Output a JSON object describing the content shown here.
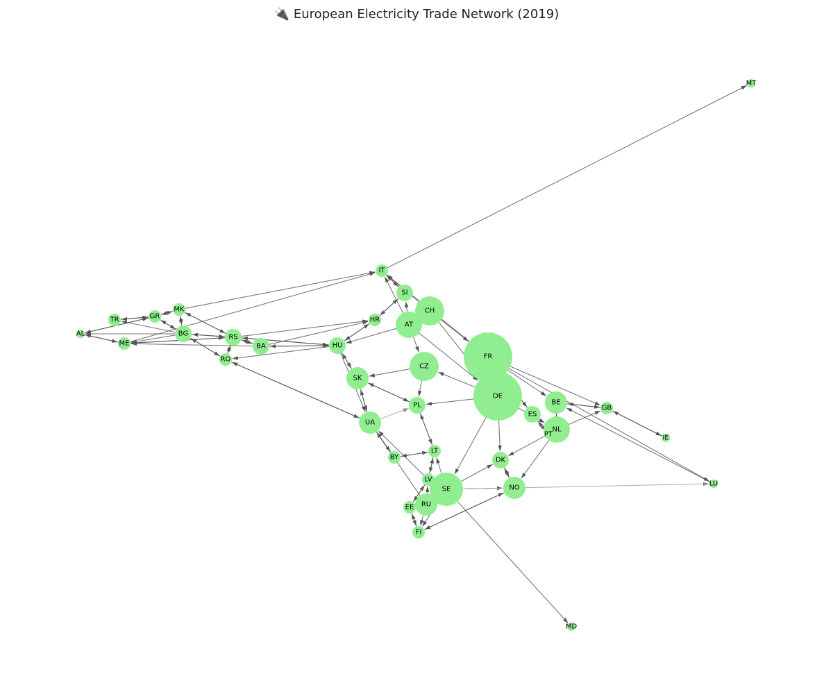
{
  "title": "🔌 European Electricity Trade Network (2019)",
  "colors": {
    "node": "#90ee90",
    "edge": "#555555",
    "edge_light": "#aaaaaa"
  },
  "nodes": [
    {
      "id": "MT",
      "label": "MT",
      "size": 0
    },
    {
      "id": "IT",
      "label": "IT",
      "size": 1
    },
    {
      "id": "SI",
      "label": "SI",
      "size": 2
    },
    {
      "id": "CH",
      "label": "CH",
      "size": 5
    },
    {
      "id": "AT",
      "label": "AT",
      "size": 4
    },
    {
      "id": "HR",
      "label": "HR",
      "size": 1
    },
    {
      "id": "FR",
      "label": "FR",
      "size": 10
    },
    {
      "id": "DE",
      "label": "DE",
      "size": 10
    },
    {
      "id": "CZ",
      "label": "CZ",
      "size": 5
    },
    {
      "id": "HU",
      "label": "HU",
      "size": 2
    },
    {
      "id": "SK",
      "label": "SK",
      "size": 3
    },
    {
      "id": "PL",
      "label": "PL",
      "size": 2
    },
    {
      "id": "UA",
      "label": "UA",
      "size": 3
    },
    {
      "id": "BE",
      "label": "BE",
      "size": 3
    },
    {
      "id": "GB",
      "label": "GB",
      "size": 1
    },
    {
      "id": "ES",
      "label": "ES",
      "size": 2
    },
    {
      "id": "NL",
      "label": "NL",
      "size": 4
    },
    {
      "id": "PT",
      "label": "PT",
      "size": 0
    },
    {
      "id": "IE",
      "label": "IE",
      "size": 0
    },
    {
      "id": "LU",
      "label": "LU",
      "size": 0
    },
    {
      "id": "DK",
      "label": "DK",
      "size": 2
    },
    {
      "id": "NO",
      "label": "NO",
      "size": 3
    },
    {
      "id": "SE",
      "label": "SE",
      "size": 6
    },
    {
      "id": "LT",
      "label": "LT",
      "size": 1
    },
    {
      "id": "LV",
      "label": "LV",
      "size": 1
    },
    {
      "id": "BY",
      "label": "BY",
      "size": 1
    },
    {
      "id": "EE",
      "label": "EE",
      "size": 1
    },
    {
      "id": "RU",
      "label": "RU",
      "size": 3
    },
    {
      "id": "FI",
      "label": "FI",
      "size": 1
    },
    {
      "id": "MD",
      "label": "MD",
      "size": 0
    },
    {
      "id": "MK",
      "label": "MK",
      "size": 1
    },
    {
      "id": "GR",
      "label": "GR",
      "size": 1
    },
    {
      "id": "TR",
      "label": "TR",
      "size": 1
    },
    {
      "id": "AL",
      "label": "AL",
      "size": 0
    },
    {
      "id": "BG",
      "label": "BG",
      "size": 2
    },
    {
      "id": "ME",
      "label": "ME",
      "size": 1
    },
    {
      "id": "RS",
      "label": "RS",
      "size": 2
    },
    {
      "id": "BA",
      "label": "BA",
      "size": 2
    },
    {
      "id": "RO",
      "label": "RO",
      "size": 1
    }
  ],
  "edges": [
    {
      "from": "IT",
      "to": "MT"
    },
    {
      "from": "MK",
      "to": "IT"
    },
    {
      "from": "ME",
      "to": "IT"
    },
    {
      "from": "IT",
      "to": "SI"
    },
    {
      "from": "SI",
      "to": "IT"
    },
    {
      "from": "AT",
      "to": "IT"
    },
    {
      "from": "CH",
      "to": "IT"
    },
    {
      "from": "FR",
      "to": "IT"
    },
    {
      "from": "AT",
      "to": "SI"
    },
    {
      "from": "SI",
      "to": "HR"
    },
    {
      "from": "HR",
      "to": "SI"
    },
    {
      "from": "AT",
      "to": "HU"
    },
    {
      "from": "HU",
      "to": "HR"
    },
    {
      "from": "HR",
      "to": "HU"
    },
    {
      "from": "RS",
      "to": "HR"
    },
    {
      "from": "BA",
      "to": "HR"
    },
    {
      "from": "CH",
      "to": "AT"
    },
    {
      "from": "CH",
      "to": "DE"
    },
    {
      "from": "CH",
      "to": "FR"
    },
    {
      "from": "AT",
      "to": "CZ"
    },
    {
      "from": "AT",
      "to": "DE"
    },
    {
      "from": "FR",
      "to": "BE"
    },
    {
      "from": "FR",
      "to": "GB"
    },
    {
      "from": "FR",
      "to": "ES"
    },
    {
      "from": "ES",
      "to": "FR"
    },
    {
      "from": "ES",
      "to": "PT"
    },
    {
      "from": "PT",
      "to": "ES"
    },
    {
      "from": "FR",
      "to": "LU"
    },
    {
      "from": "LU",
      "to": "BE"
    },
    {
      "from": "BE",
      "to": "GB"
    },
    {
      "from": "GB",
      "to": "BE"
    },
    {
      "from": "NL",
      "to": "GB"
    },
    {
      "from": "NL",
      "to": "BE"
    },
    {
      "from": "BE",
      "to": "NL"
    },
    {
      "from": "GB",
      "to": "IE"
    },
    {
      "from": "IE",
      "to": "GB"
    },
    {
      "from": "DE",
      "to": "NL"
    },
    {
      "from": "NL",
      "to": "DK"
    },
    {
      "from": "NL",
      "to": "NO"
    },
    {
      "from": "DE",
      "to": "DK"
    },
    {
      "from": "DE",
      "to": "PL"
    },
    {
      "from": "DE",
      "to": "CZ"
    },
    {
      "from": "DE",
      "to": "SE"
    },
    {
      "from": "CZ",
      "to": "SK"
    },
    {
      "from": "CZ",
      "to": "PL"
    },
    {
      "from": "HU",
      "to": "SK"
    },
    {
      "from": "SK",
      "to": "HU"
    },
    {
      "from": "HU",
      "to": "RO"
    },
    {
      "from": "HU",
      "to": "RS"
    },
    {
      "from": "RS",
      "to": "HU"
    },
    {
      "from": "HU",
      "to": "UA"
    },
    {
      "from": "SK",
      "to": "UA"
    },
    {
      "from": "UA",
      "to": "SK"
    },
    {
      "from": "SK",
      "to": "PL"
    },
    {
      "from": "PL",
      "to": "SK"
    },
    {
      "from": "UA",
      "to": "PL",
      "light": true
    },
    {
      "from": "UA",
      "to": "RO"
    },
    {
      "from": "RO",
      "to": "UA"
    },
    {
      "from": "UA",
      "to": "BY"
    },
    {
      "from": "BY",
      "to": "UA"
    },
    {
      "from": "RU",
      "to": "UA"
    },
    {
      "from": "LV",
      "to": "UA"
    },
    {
      "from": "PL",
      "to": "LT"
    },
    {
      "from": "LT",
      "to": "PL"
    },
    {
      "from": "BY",
      "to": "LT"
    },
    {
      "from": "LT",
      "to": "BY"
    },
    {
      "from": "LV",
      "to": "LT"
    },
    {
      "from": "LT",
      "to": "LV"
    },
    {
      "from": "SE",
      "to": "LT"
    },
    {
      "from": "SE",
      "to": "DK"
    },
    {
      "from": "DK",
      "to": "NO"
    },
    {
      "from": "NO",
      "to": "DK"
    },
    {
      "from": "SE",
      "to": "NO"
    },
    {
      "from": "FI",
      "to": "NO"
    },
    {
      "from": "NO",
      "to": "FI"
    },
    {
      "from": "SE",
      "to": "MD"
    },
    {
      "from": "SE",
      "to": "FI"
    },
    {
      "from": "EE",
      "to": "LV"
    },
    {
      "from": "LV",
      "to": "EE"
    },
    {
      "from": "EE",
      "to": "FI"
    },
    {
      "from": "FI",
      "to": "EE"
    },
    {
      "from": "RU",
      "to": "FI"
    },
    {
      "from": "RU",
      "to": "EE"
    },
    {
      "from": "RU",
      "to": "LV"
    },
    {
      "from": "SE",
      "to": "LU",
      "light": true
    },
    {
      "from": "MK",
      "to": "GR"
    },
    {
      "from": "GR",
      "to": "MK"
    },
    {
      "from": "MK",
      "to": "BG"
    },
    {
      "from": "BG",
      "to": "MK"
    },
    {
      "from": "MK",
      "to": "RS"
    },
    {
      "from": "RS",
      "to": "MK"
    },
    {
      "from": "TR",
      "to": "GR"
    },
    {
      "from": "GR",
      "to": "TR"
    },
    {
      "from": "BG",
      "to": "TR"
    },
    {
      "from": "BG",
      "to": "GR"
    },
    {
      "from": "GR",
      "to": "BG"
    },
    {
      "from": "AL",
      "to": "GR"
    },
    {
      "from": "GR",
      "to": "AL"
    },
    {
      "from": "AL",
      "to": "ME"
    },
    {
      "from": "ME",
      "to": "AL"
    },
    {
      "from": "BG",
      "to": "AL"
    },
    {
      "from": "BG",
      "to": "ME"
    },
    {
      "from": "RS",
      "to": "ME"
    },
    {
      "from": "ME",
      "to": "RS"
    },
    {
      "from": "BA",
      "to": "ME"
    },
    {
      "from": "BG",
      "to": "RS"
    },
    {
      "from": "RS",
      "to": "BG"
    },
    {
      "from": "BG",
      "to": "RO"
    },
    {
      "from": "RO",
      "to": "BG"
    },
    {
      "from": "RO",
      "to": "RS"
    },
    {
      "from": "RS",
      "to": "RO"
    },
    {
      "from": "RS",
      "to": "BA"
    },
    {
      "from": "BA",
      "to": "RS"
    },
    {
      "from": "BA",
      "to": "HU"
    },
    {
      "from": "HU",
      "to": "BA"
    }
  ]
}
